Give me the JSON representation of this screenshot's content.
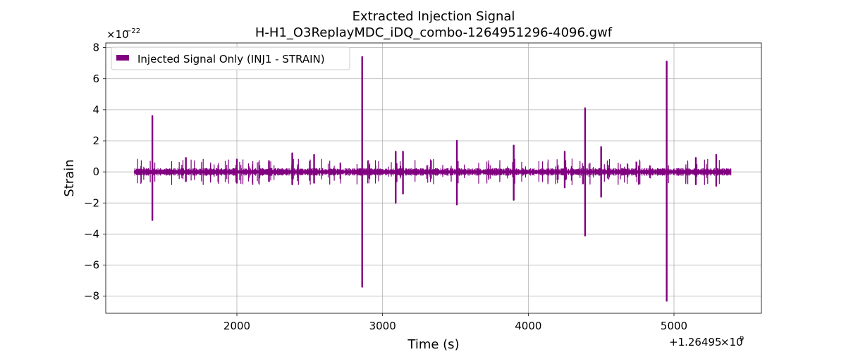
{
  "chart_data": {
    "type": "line",
    "title_line1": "Extracted Injection Signal",
    "title_line2": "H-H1_O3ReplayMDC_iDQ_combo-1264951296-4096.gwf",
    "xlabel": "Time (s)",
    "ylabel": "Strain",
    "x_offset_label": "+1.26495",
    "x_offset_exponent_base": "×10",
    "x_offset_exponent": "9",
    "y_scale_label": "×10",
    "y_scale_exponent": "−22",
    "xlim": [
      1100,
      5600
    ],
    "ylim": [
      -9.1,
      8.3
    ],
    "x_ticks": [
      2000,
      3000,
      4000,
      5000
    ],
    "x_tick_labels": [
      "2000",
      "3000",
      "4000",
      "5000"
    ],
    "y_ticks": [
      -8,
      -6,
      -4,
      -2,
      0,
      2,
      4,
      6,
      8
    ],
    "y_tick_labels": [
      "−8",
      "−6",
      "−4",
      "−2",
      "0",
      "2",
      "4",
      "6",
      "8"
    ],
    "grid": true,
    "legend_position": "top-left",
    "series": [
      {
        "name": "Injected Signal Only (INJ1 - STRAIN)",
        "color": "#800080",
        "x_start": 1296,
        "x_end": 5392,
        "baseline_amplitude": 0.25,
        "spikes": [
          {
            "x": 1420,
            "ymax": 3.6,
            "ymin": -3.1
          },
          {
            "x": 1650,
            "ymax": 0.9,
            "ymin": -0.6
          },
          {
            "x": 2000,
            "ymax": 0.8,
            "ymin": -0.7
          },
          {
            "x": 2220,
            "ymax": 0.7,
            "ymin": -0.6
          },
          {
            "x": 2380,
            "ymax": 1.2,
            "ymin": -0.8
          },
          {
            "x": 2530,
            "ymax": 1.1,
            "ymin": -0.7
          },
          {
            "x": 2860,
            "ymax": 7.4,
            "ymin": -7.4
          },
          {
            "x": 3090,
            "ymax": 1.3,
            "ymin": -2.0
          },
          {
            "x": 3140,
            "ymax": 1.3,
            "ymin": -1.4
          },
          {
            "x": 3510,
            "ymax": 2.0,
            "ymin": -2.1
          },
          {
            "x": 3900,
            "ymax": 1.7,
            "ymin": -1.8
          },
          {
            "x": 4250,
            "ymax": 1.3,
            "ymin": -1.0
          },
          {
            "x": 4390,
            "ymax": 4.1,
            "ymin": -4.1
          },
          {
            "x": 4500,
            "ymax": 1.6,
            "ymin": -1.6
          },
          {
            "x": 4950,
            "ymax": 7.1,
            "ymin": -8.3
          },
          {
            "x": 5150,
            "ymax": 0.9,
            "ymin": -0.8
          },
          {
            "x": 5290,
            "ymax": 1.1,
            "ymin": -0.9
          }
        ]
      }
    ]
  }
}
